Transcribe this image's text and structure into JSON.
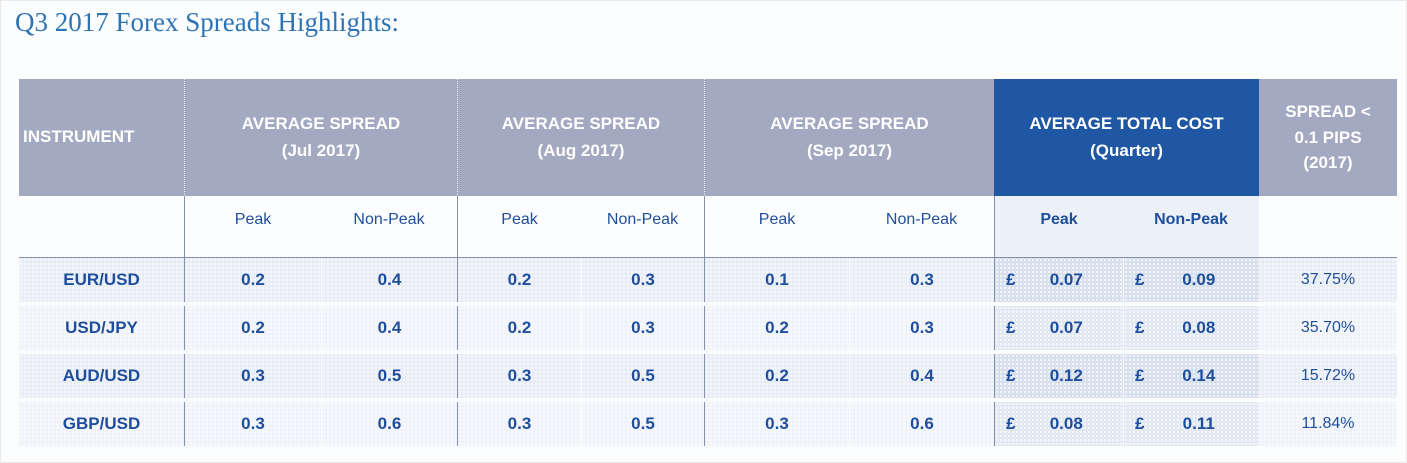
{
  "title": "Q3 2017 Forex Spreads Highlights:",
  "colors": {
    "header_gray": "#A3A9C1",
    "header_blue": "#1F57A5",
    "text_blue": "#1E4E9C",
    "title_blue": "#2E74B5",
    "row_odd": "#E8EDF6",
    "row_even": "#F0F3FA",
    "cost_odd": "#D7E0EC",
    "cost_even": "#E3E9F3"
  },
  "table": {
    "instrument_header": "INSTRUMENT",
    "column_groups": [
      {
        "label_line1": "AVERAGE SPREAD",
        "label_line2": "(Jul 2017)",
        "peak_label": "Peak",
        "nonpeak_label": "Non-Peak"
      },
      {
        "label_line1": "AVERAGE SPREAD",
        "label_line2": "(Aug 2017)",
        "peak_label": "Peak",
        "nonpeak_label": "Non-Peak"
      },
      {
        "label_line1": "AVERAGE SPREAD",
        "label_line2": "(Sep 2017)",
        "peak_label": "Peak",
        "nonpeak_label": "Non-Peak"
      },
      {
        "label_line1": "AVERAGE TOTAL COST",
        "label_line2": "(Quarter)",
        "peak_label": "Peak",
        "nonpeak_label": "Non-Peak"
      }
    ],
    "spread_pips_header": {
      "line1": "SPREAD <",
      "line2": "0.1 PIPS",
      "line3": "(2017)"
    },
    "currency_symbol": "£",
    "rows": [
      {
        "instrument": "EUR/USD",
        "jul_peak": "0.2",
        "jul_nonpeak": "0.4",
        "aug_peak": "0.2",
        "aug_nonpeak": "0.3",
        "sep_peak": "0.1",
        "sep_nonpeak": "0.3",
        "cost_peak": "0.07",
        "cost_nonpeak": "0.09",
        "spread_pct": "37.75%"
      },
      {
        "instrument": "USD/JPY",
        "jul_peak": "0.2",
        "jul_nonpeak": "0.4",
        "aug_peak": "0.2",
        "aug_nonpeak": "0.3",
        "sep_peak": "0.2",
        "sep_nonpeak": "0.3",
        "cost_peak": "0.07",
        "cost_nonpeak": "0.08",
        "spread_pct": "35.70%"
      },
      {
        "instrument": "AUD/USD",
        "jul_peak": "0.3",
        "jul_nonpeak": "0.5",
        "aug_peak": "0.3",
        "aug_nonpeak": "0.5",
        "sep_peak": "0.2",
        "sep_nonpeak": "0.4",
        "cost_peak": "0.12",
        "cost_nonpeak": "0.14",
        "spread_pct": "15.72%"
      },
      {
        "instrument": "GBP/USD",
        "jul_peak": "0.3",
        "jul_nonpeak": "0.6",
        "aug_peak": "0.3",
        "aug_nonpeak": "0.5",
        "sep_peak": "0.3",
        "sep_nonpeak": "0.6",
        "cost_peak": "0.08",
        "cost_nonpeak": "0.11",
        "spread_pct": "11.84%"
      }
    ]
  }
}
